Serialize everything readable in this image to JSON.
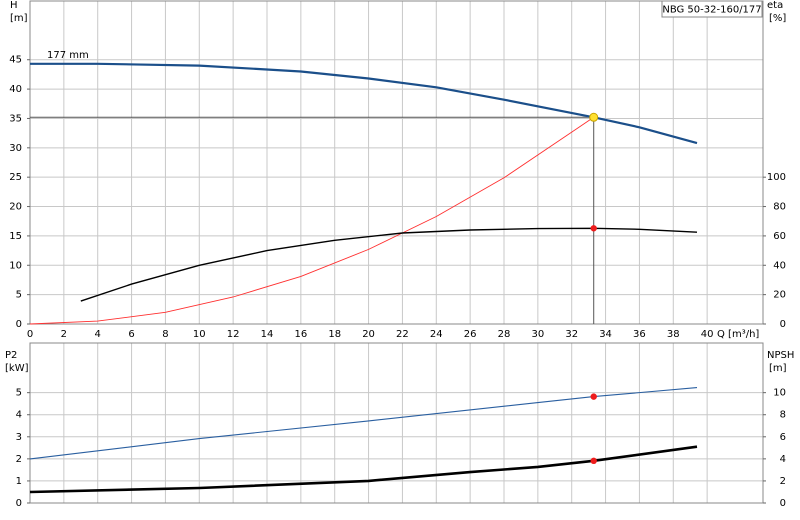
{
  "chart_data": [
    {
      "type": "line",
      "title": "NBG 50-32-160/177",
      "annotation": "177 mm",
      "ylabel": "H",
      "yunit": "[m]",
      "y2label": "eta",
      "y2unit": "[%]",
      "xlabel": "Q [m³/h]",
      "xlim": [
        0,
        43.3
      ],
      "xticks": [
        0,
        2,
        4,
        6,
        8,
        10,
        12,
        14,
        16,
        18,
        20,
        22,
        24,
        26,
        28,
        30,
        32,
        34,
        36,
        38,
        40
      ],
      "ylim": [
        0,
        55
      ],
      "yticks": [
        0,
        5,
        10,
        15,
        20,
        25,
        30,
        35,
        40,
        45
      ],
      "y2lim": [
        0,
        220
      ],
      "y2ticks": [
        0,
        20,
        40,
        60,
        80,
        100
      ],
      "show_xtick_labels": true,
      "grid": true,
      "series": [
        {
          "color": "#1b4f8a",
          "width": 2.2,
          "axis": "y",
          "x": [
            0,
            4,
            10,
            16,
            20,
            24,
            28,
            33.3,
            36,
            39.4
          ],
          "values": [
            44.3,
            44.3,
            44.0,
            43.0,
            41.8,
            40.3,
            38.2,
            35.2,
            33.5,
            30.8
          ]
        },
        {
          "color": "#ff3030",
          "width": 0.9,
          "axis": "y",
          "x": [
            0,
            4,
            8,
            12,
            16,
            20,
            24,
            28,
            33.3
          ],
          "values": [
            0,
            0.5,
            2.0,
            4.6,
            8.1,
            12.7,
            18.3,
            24.9,
            35.2
          ]
        },
        {
          "color": "#000000",
          "width": 1.4,
          "axis": "y2",
          "x": [
            3,
            6,
            10,
            14,
            18,
            22,
            26,
            30,
            33.3,
            36,
            39.4
          ],
          "values": [
            15.6,
            27.2,
            40,
            50,
            57,
            62,
            64,
            65,
            65.2,
            64.5,
            62.5
          ]
        }
      ],
      "duty_point": {
        "x": 33.3,
        "y": 35.2,
        "y2": 65.2
      }
    },
    {
      "type": "line",
      "ylabel": "P2",
      "yunit": "[kW]",
      "y2label": "NPSH",
      "y2unit": "[m]",
      "xlim": [
        0,
        43.3
      ],
      "xticks": [
        0,
        2,
        4,
        6,
        8,
        10,
        12,
        14,
        16,
        18,
        20,
        22,
        24,
        26,
        28,
        30,
        32,
        34,
        36,
        38,
        40
      ],
      "ylim": [
        0,
        7.25
      ],
      "yticks": [
        0,
        1,
        2,
        3,
        4,
        5
      ],
      "y2lim": [
        0,
        14.5
      ],
      "y2ticks": [
        0,
        2,
        4,
        6,
        8,
        10
      ],
      "show_xtick_labels": false,
      "grid": true,
      "series": [
        {
          "color": "#2a5fa0",
          "width": 1.1,
          "axis": "y",
          "x": [
            0,
            10,
            20,
            30,
            33.3,
            39.4
          ],
          "values": [
            2.0,
            2.92,
            3.72,
            4.55,
            4.82,
            5.23
          ]
        },
        {
          "color": "#000000",
          "width": 2.6,
          "axis": "y2",
          "x": [
            0,
            10,
            20,
            26,
            30,
            33.3,
            39.4
          ],
          "values": [
            1.0,
            1.36,
            2.0,
            2.8,
            3.27,
            3.82,
            5.1
          ]
        }
      ],
      "duty_point": {
        "x": 33.3,
        "y": 4.82,
        "y2": 3.82
      }
    }
  ]
}
